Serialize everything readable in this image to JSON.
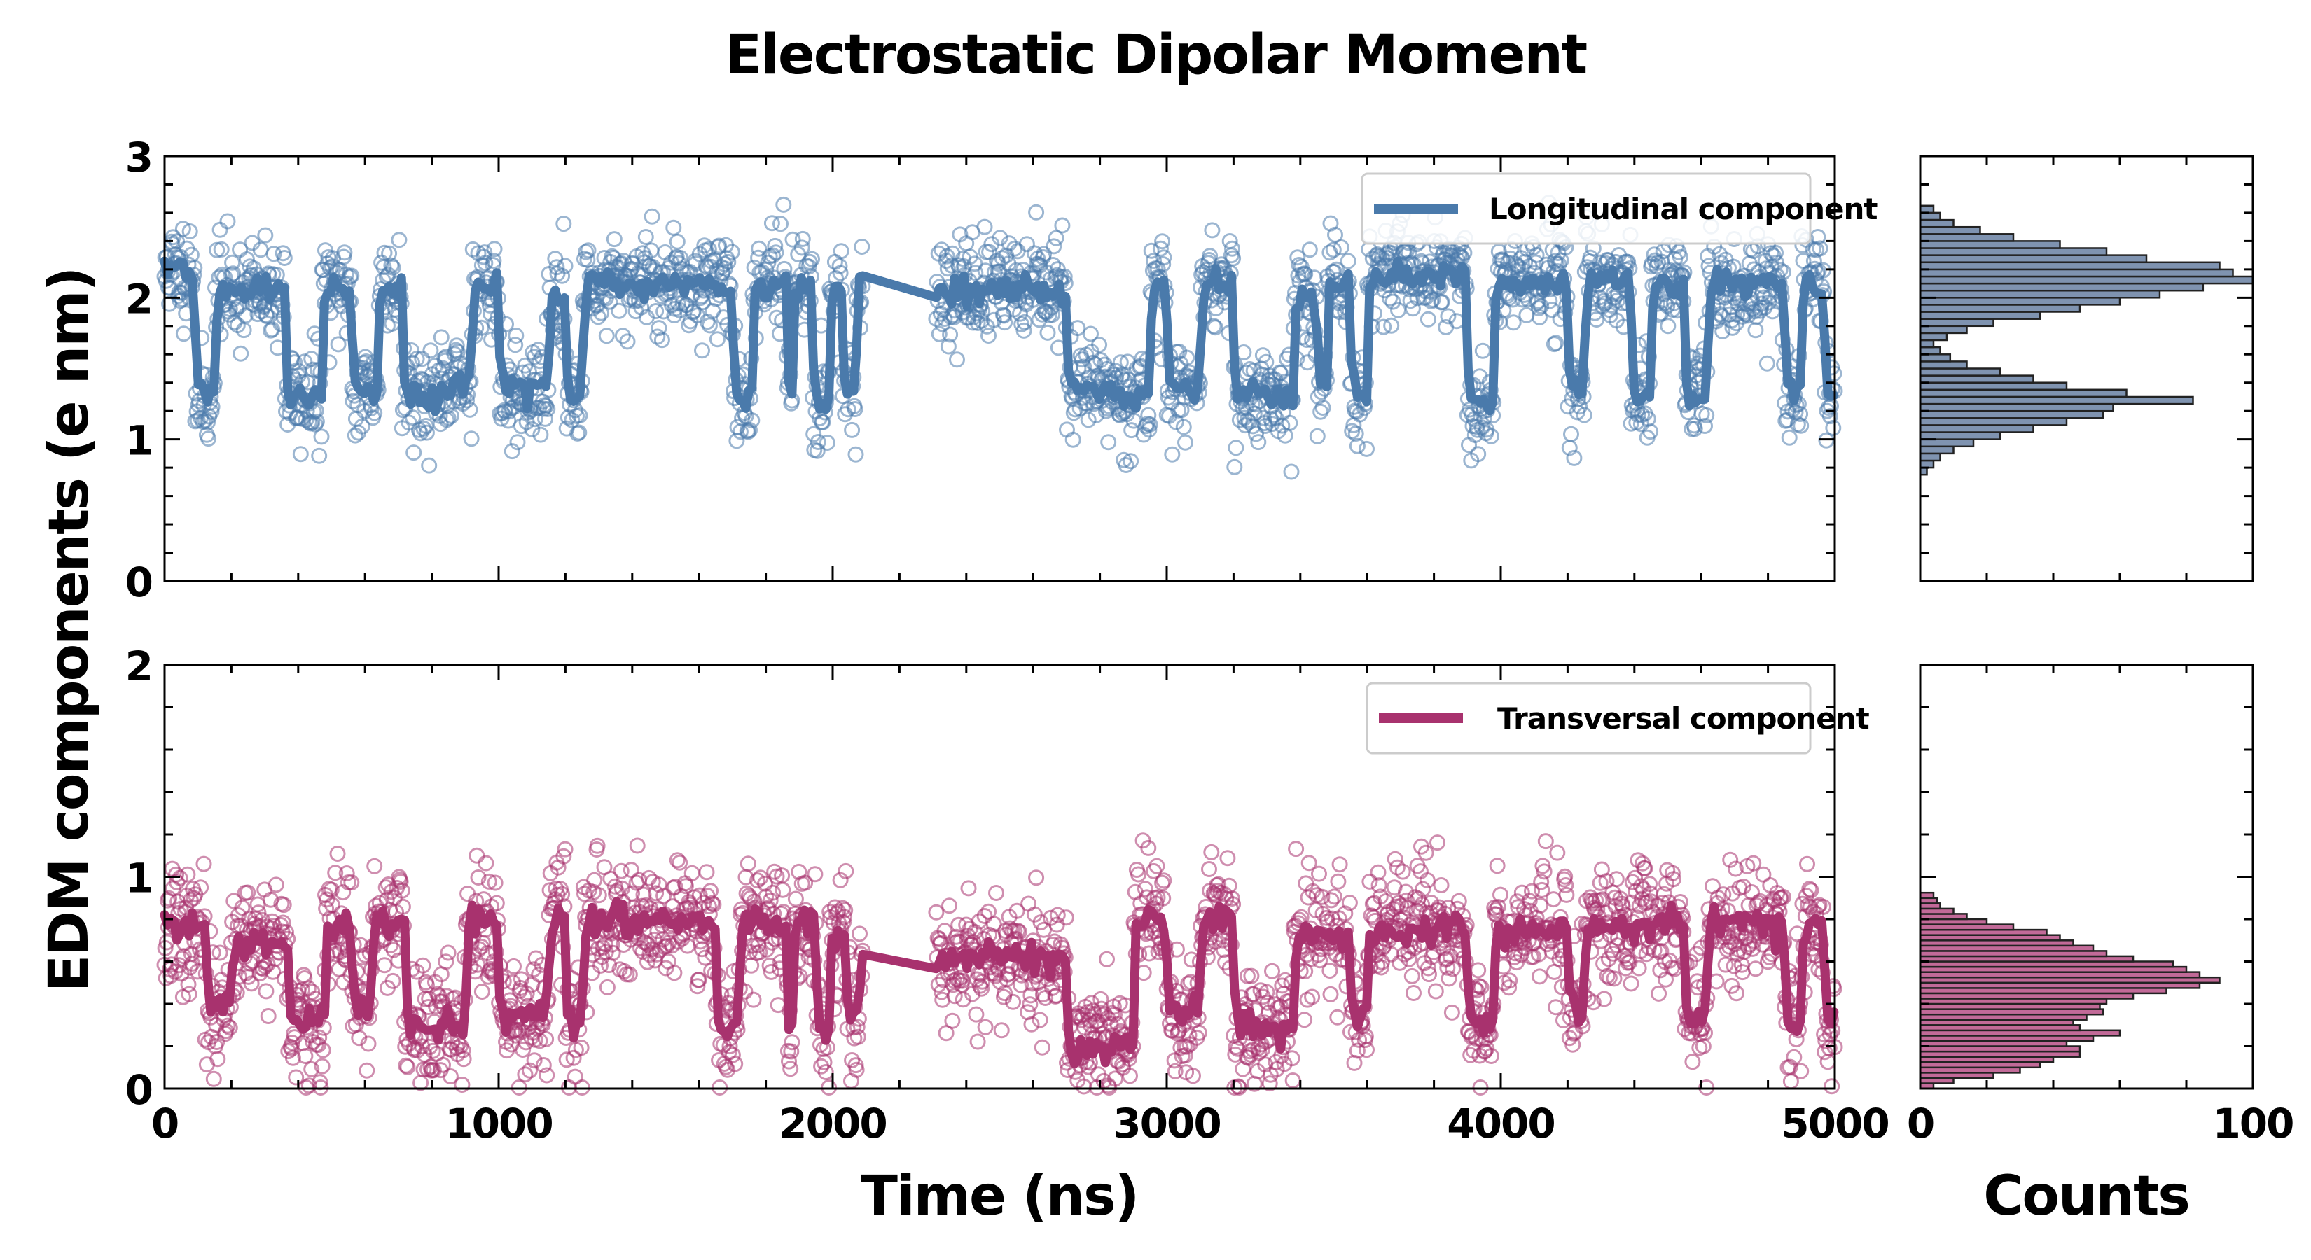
{
  "chart_data": {
    "title": "Electrostatic Dipolar Moment",
    "ylabel": "EDM components (e nm)",
    "xlabel": "Time (ns)",
    "hist_xlabel": "Counts",
    "colors": {
      "longitudinal": "#4a7aab",
      "transversal": "#a8326e",
      "hist_top": "#7f93b0",
      "hist_bottom": "#c26a98"
    },
    "xlim": [
      0,
      5000
    ],
    "x_ticks": [
      "0",
      "1000",
      "2000",
      "3000",
      "4000",
      "5000"
    ],
    "hist_xlim": [
      0,
      100
    ],
    "hist_ticks": [
      "0",
      "100"
    ],
    "panels": [
      {
        "id": "top",
        "type": "scatter+line",
        "legend": "Longitudinal component",
        "ylim": [
          0,
          3
        ],
        "y_ticks": [
          "0",
          "1",
          "2",
          "3"
        ],
        "segments": [
          {
            "start": 0,
            "end": 2090,
            "seed": 11,
            "states": [
              [
                0,
                2.2
              ],
              [
                90,
                1.3
              ],
              [
                150,
                2.05
              ],
              [
                360,
                1.3
              ],
              [
                470,
                2.05
              ],
              [
                560,
                1.35
              ],
              [
                640,
                2.1
              ],
              [
                710,
                1.35
              ],
              [
                760,
                1.3
              ],
              [
                860,
                1.4
              ],
              [
                920,
                2.1
              ],
              [
                1000,
                1.35
              ],
              [
                1150,
                2.0
              ],
              [
                1200,
                1.3
              ],
              [
                1250,
                2.1
              ],
              [
                1700,
                1.3
              ],
              [
                1760,
                2.1
              ],
              [
                1860,
                1.35
              ],
              [
                1880,
                2.1
              ],
              [
                1940,
                1.3
              ],
              [
                1990,
                2.05
              ],
              [
                2030,
                1.3
              ],
              [
                2070,
                2.1
              ]
            ]
          },
          {
            "start": 2310,
            "end": 5000,
            "seed": 23,
            "states": [
              [
                2310,
                2.05
              ],
              [
                2700,
                1.35
              ],
              [
                2850,
                1.3
              ],
              [
                2950,
                2.1
              ],
              [
                3000,
                1.35
              ],
              [
                3100,
                2.1
              ],
              [
                3200,
                1.3
              ],
              [
                3380,
                2.0
              ],
              [
                3450,
                1.35
              ],
              [
                3480,
                2.1
              ],
              [
                3550,
                1.3
              ],
              [
                3600,
                2.15
              ],
              [
                3900,
                1.25
              ],
              [
                3980,
                2.1
              ],
              [
                4200,
                1.3
              ],
              [
                4250,
                2.1
              ],
              [
                4390,
                1.3
              ],
              [
                4450,
                2.1
              ],
              [
                4550,
                1.3
              ],
              [
                4620,
                2.1
              ],
              [
                4850,
                1.35
              ],
              [
                4900,
                2.1
              ],
              [
                4970,
                1.3
              ]
            ]
          }
        ],
        "hist": {
          "bin_start": 0.75,
          "bin_width": 0.05,
          "counts": [
            2,
            4,
            6,
            10,
            16,
            24,
            34,
            44,
            55,
            58,
            82,
            62,
            44,
            34,
            24,
            14,
            9,
            6,
            4,
            8,
            14,
            22,
            36,
            48,
            60,
            72,
            85,
            100,
            94,
            90,
            68,
            56,
            42,
            28,
            18,
            10,
            6,
            4
          ]
        }
      },
      {
        "id": "bottom",
        "type": "scatter+line",
        "legend": "Transversal component",
        "ylim": [
          0,
          2
        ],
        "y_ticks": [
          "0",
          "1",
          "2"
        ],
        "segments": [
          {
            "start": 0,
            "end": 2090,
            "seed": 37,
            "states": [
              [
                0,
                0.75
              ],
              [
                120,
                0.4
              ],
              [
                200,
                0.7
              ],
              [
                370,
                0.3
              ],
              [
                480,
                0.75
              ],
              [
                560,
                0.4
              ],
              [
                620,
                0.78
              ],
              [
                720,
                0.3
              ],
              [
                900,
                0.8
              ],
              [
                1000,
                0.35
              ],
              [
                1150,
                0.8
              ],
              [
                1200,
                0.3
              ],
              [
                1250,
                0.8
              ],
              [
                1650,
                0.3
              ],
              [
                1720,
                0.78
              ],
              [
                1860,
                0.3
              ],
              [
                1880,
                0.78
              ],
              [
                1950,
                0.25
              ],
              [
                1990,
                0.75
              ],
              [
                2040,
                0.3
              ],
              [
                2080,
                0.7
              ]
            ]
          },
          {
            "start": 2310,
            "end": 5000,
            "seed": 53,
            "states": [
              [
                2310,
                0.62
              ],
              [
                2700,
                0.2
              ],
              [
                2900,
                0.8
              ],
              [
                3000,
                0.35
              ],
              [
                3100,
                0.8
              ],
              [
                3200,
                0.3
              ],
              [
                3380,
                0.72
              ],
              [
                3550,
                0.35
              ],
              [
                3600,
                0.75
              ],
              [
                3900,
                0.3
              ],
              [
                3980,
                0.75
              ],
              [
                4200,
                0.4
              ],
              [
                4250,
                0.78
              ],
              [
                4550,
                0.35
              ],
              [
                4620,
                0.78
              ],
              [
                4850,
                0.3
              ],
              [
                4900,
                0.75
              ],
              [
                4970,
                0.3
              ]
            ]
          }
        ],
        "hist": {
          "bin_start": 0.0,
          "bin_width": 0.025,
          "counts": [
            4,
            10,
            22,
            30,
            36,
            40,
            48,
            48,
            44,
            52,
            60,
            48,
            46,
            50,
            55,
            54,
            56,
            64,
            74,
            84,
            90,
            84,
            80,
            76,
            64,
            56,
            52,
            46,
            42,
            38,
            28,
            20,
            14,
            10,
            6,
            5,
            4
          ]
        }
      }
    ]
  }
}
